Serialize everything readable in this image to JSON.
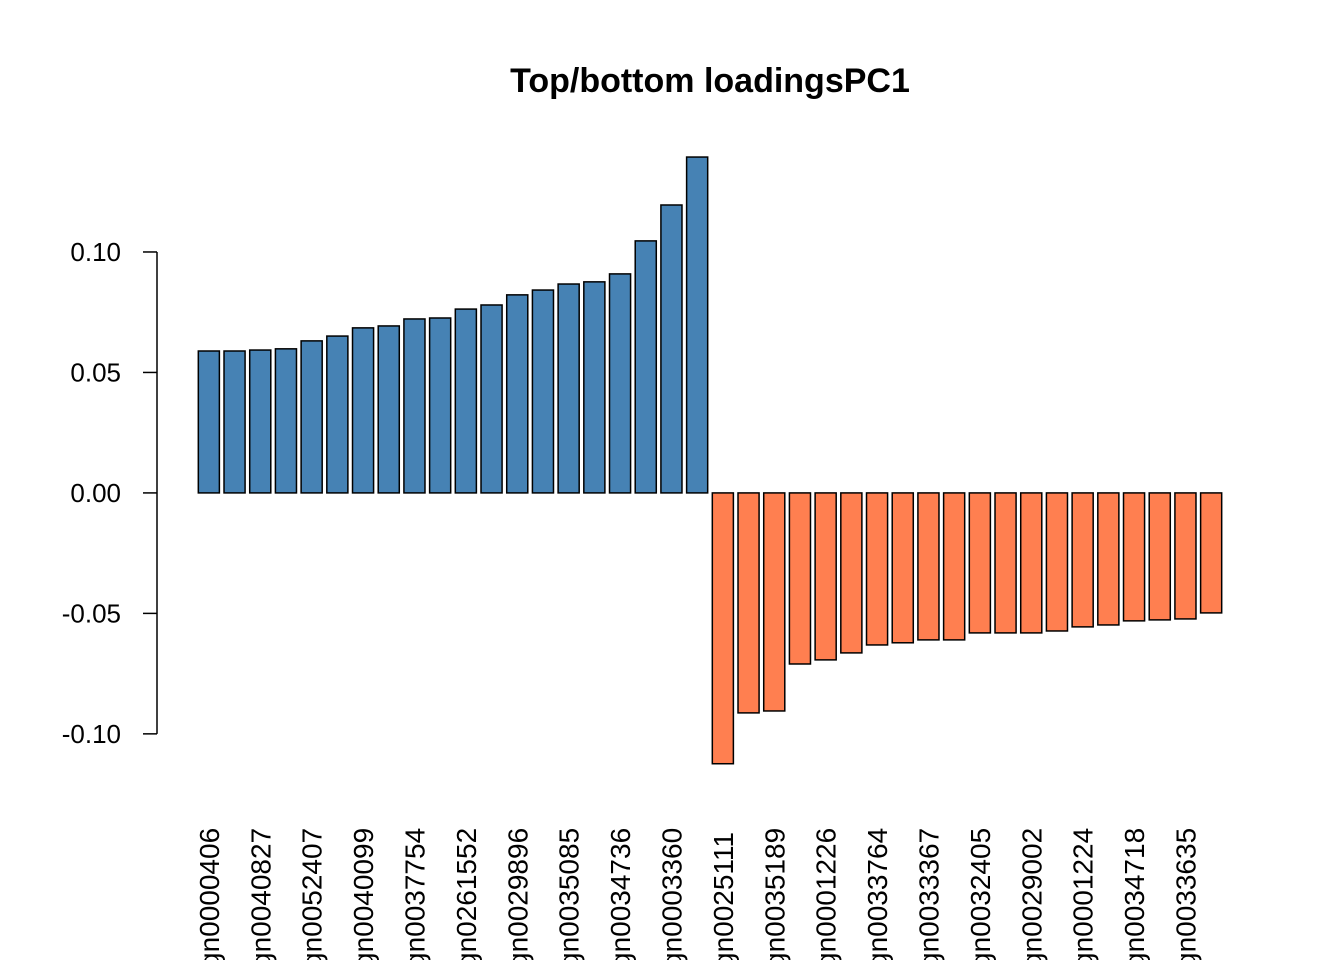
{
  "chart_data": {
    "type": "bar",
    "title": "Top/bottom loadingsPC1",
    "categories": [
      "gn0000406",
      null,
      "gn0040827",
      null,
      "gn0052407",
      null,
      "gn0040099",
      null,
      "gn0037754",
      null,
      "gn0261552",
      null,
      "gn0029896",
      null,
      "gn0035085",
      null,
      "gn0034736",
      null,
      "gn0003360",
      null,
      "gn0025111",
      null,
      "gn0035189",
      null,
      "gn0001226",
      null,
      "gn0033764",
      null,
      "gn0033367",
      null,
      "gn0032405",
      null,
      "gn0029002",
      null,
      "gn0001224",
      null,
      "gn0034718",
      null,
      "gn0033635",
      null
    ],
    "values": [
      0.0589,
      0.0589,
      0.0593,
      0.0598,
      0.0631,
      0.0651,
      0.0685,
      0.0693,
      0.0722,
      0.0726,
      0.0763,
      0.078,
      0.0822,
      0.0842,
      0.0867,
      0.0876,
      0.0909,
      0.1046,
      0.1195,
      0.1394,
      -0.1124,
      -0.0913,
      -0.0905,
      -0.071,
      -0.0693,
      -0.0664,
      -0.0631,
      -0.0622,
      -0.061,
      -0.061,
      -0.0581,
      -0.0581,
      -0.0581,
      -0.0573,
      -0.0556,
      -0.0548,
      -0.0531,
      -0.0527,
      -0.0523,
      -0.0498
    ],
    "color": "#4682b4",
    "negative_color": "#ff7f50",
    "ylim": [
      -0.115,
      0.14
    ],
    "yticks": [
      {
        "value": -0.1,
        "label": "-0.10"
      },
      {
        "value": -0.05,
        "label": "-0.05"
      },
      {
        "value": 0,
        "label": "0.00"
      },
      {
        "value": 0.05,
        "label": "0.05"
      },
      {
        "value": 0.1,
        "label": "0.10"
      }
    ],
    "grid": false
  }
}
